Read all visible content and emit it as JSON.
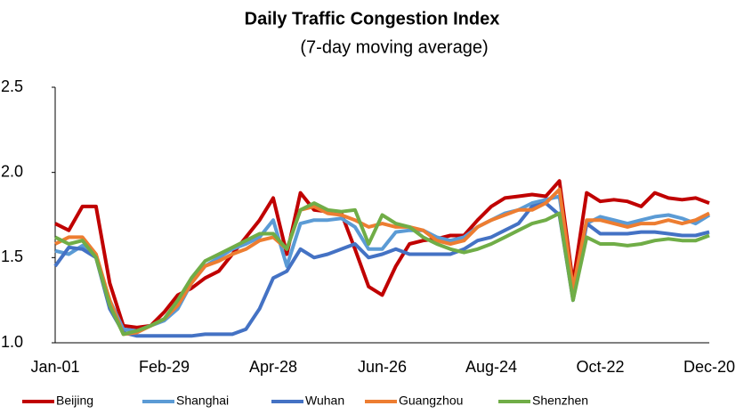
{
  "chart_data": {
    "type": "line",
    "title": "Daily Traffic Congestion Index",
    "subtitle": "(7-day moving average)",
    "categories": [
      "Jan-01",
      null,
      null,
      null,
      null,
      null,
      null,
      null,
      "Feb-29",
      null,
      null,
      null,
      null,
      null,
      null,
      null,
      "Apr-28",
      null,
      null,
      null,
      null,
      null,
      null,
      null,
      "Jun-26",
      null,
      null,
      null,
      null,
      null,
      null,
      null,
      "Aug-24",
      null,
      null,
      null,
      null,
      null,
      null,
      null,
      "Oct-22",
      null,
      null,
      null,
      null,
      null,
      null,
      null,
      "Dec-20"
    ],
    "series": [
      {
        "name": "Beijing",
        "color": "#c00000",
        "values": [
          1.7,
          1.66,
          1.8,
          1.8,
          1.35,
          1.1,
          1.09,
          1.1,
          1.18,
          1.28,
          1.32,
          1.38,
          1.42,
          1.52,
          1.62,
          1.72,
          1.85,
          1.52,
          1.88,
          1.78,
          1.77,
          1.76,
          1.55,
          1.33,
          1.28,
          1.45,
          1.58,
          1.6,
          1.61,
          1.63,
          1.63,
          1.72,
          1.8,
          1.85,
          1.86,
          1.87,
          1.86,
          1.95,
          1.35,
          1.88,
          1.83,
          1.84,
          1.83,
          1.8,
          1.88,
          1.85,
          1.84,
          1.85,
          1.82
        ]
      },
      {
        "name": "Shanghai",
        "color": "#5b9bd5",
        "values": [
          1.54,
          1.52,
          1.57,
          1.5,
          1.25,
          1.08,
          1.07,
          1.1,
          1.13,
          1.2,
          1.35,
          1.45,
          1.5,
          1.55,
          1.58,
          1.62,
          1.72,
          1.45,
          1.7,
          1.72,
          1.72,
          1.73,
          1.68,
          1.55,
          1.55,
          1.65,
          1.66,
          1.66,
          1.62,
          1.6,
          1.62,
          1.68,
          1.72,
          1.76,
          1.78,
          1.82,
          1.84,
          1.86,
          1.3,
          1.7,
          1.74,
          1.72,
          1.7,
          1.72,
          1.74,
          1.75,
          1.73,
          1.7,
          1.75
        ]
      },
      {
        "name": "Wuhan",
        "color": "#4472c4",
        "values": [
          1.45,
          1.56,
          1.55,
          1.5,
          1.2,
          1.06,
          1.04,
          1.04,
          1.04,
          1.04,
          1.04,
          1.05,
          1.05,
          1.05,
          1.08,
          1.2,
          1.38,
          1.42,
          1.55,
          1.5,
          1.52,
          1.55,
          1.58,
          1.5,
          1.52,
          1.55,
          1.52,
          1.52,
          1.52,
          1.52,
          1.55,
          1.6,
          1.62,
          1.66,
          1.7,
          1.8,
          1.82,
          1.75,
          1.25,
          1.7,
          1.64,
          1.64,
          1.64,
          1.65,
          1.65,
          1.64,
          1.63,
          1.63,
          1.65
        ]
      },
      {
        "name": "Guangzhou",
        "color": "#ed7d31",
        "values": [
          1.58,
          1.62,
          1.62,
          1.52,
          1.25,
          1.05,
          1.06,
          1.1,
          1.14,
          1.22,
          1.35,
          1.45,
          1.48,
          1.52,
          1.55,
          1.6,
          1.62,
          1.55,
          1.78,
          1.8,
          1.76,
          1.75,
          1.72,
          1.68,
          1.7,
          1.68,
          1.68,
          1.66,
          1.6,
          1.58,
          1.6,
          1.68,
          1.72,
          1.75,
          1.78,
          1.78,
          1.82,
          1.9,
          1.32,
          1.72,
          1.72,
          1.7,
          1.68,
          1.7,
          1.7,
          1.72,
          1.7,
          1.72,
          1.76
        ]
      },
      {
        "name": "Shenzhen",
        "color": "#70ad47",
        "values": [
          1.62,
          1.58,
          1.6,
          1.5,
          1.22,
          1.05,
          1.07,
          1.1,
          1.14,
          1.25,
          1.38,
          1.48,
          1.52,
          1.56,
          1.6,
          1.64,
          1.64,
          1.55,
          1.78,
          1.82,
          1.78,
          1.77,
          1.78,
          1.58,
          1.75,
          1.7,
          1.68,
          1.62,
          1.58,
          1.55,
          1.53,
          1.55,
          1.58,
          1.62,
          1.66,
          1.7,
          1.72,
          1.76,
          1.25,
          1.62,
          1.58,
          1.58,
          1.57,
          1.58,
          1.6,
          1.61,
          1.6,
          1.6,
          1.63
        ]
      }
    ],
    "ylim": [
      1.0,
      2.5
    ],
    "yticks": [
      {
        "value": 1.0,
        "label": "1.0"
      },
      1.5,
      {
        "value": 2.0,
        "label": "2.0"
      },
      2.5
    ],
    "grid": false,
    "legend": "bottom"
  }
}
